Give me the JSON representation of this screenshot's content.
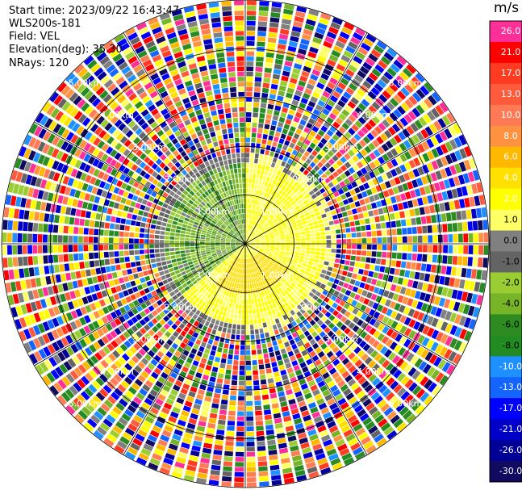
{
  "header": {
    "start_time": "Start time: 2023/09/22 16:43:47",
    "instrument": "WLS200s-181",
    "field": "Field: VEL",
    "elevation": "Elevation(deg): 35.30",
    "nrays": "NRays: 120"
  },
  "chart_data": {
    "type": "heatmap",
    "projection": "polar-ppi",
    "field": "VEL",
    "units": "m/s",
    "nrays": 120,
    "range_rings_km": [
      1.0,
      2.0,
      3.0,
      4.0,
      5.0
    ],
    "ring_labels": [
      "1.00km",
      "2.00km",
      "3.00km",
      "4.00km",
      "5.00km"
    ],
    "max_range_km": 5.0,
    "azimuth_spokes_deg": [
      0,
      30,
      60,
      90,
      120,
      150,
      180,
      210,
      240,
      270,
      300,
      330
    ],
    "grid": true,
    "colorbar": {
      "title": "m/s",
      "ticks": [
        "26.0",
        "21.0",
        "17.0",
        "13.0",
        "10.0",
        "8.0",
        "6.0",
        "4.0",
        "2.0",
        "1.0",
        "0.0",
        "-1.0",
        "-2.0",
        "-4.0",
        "-6.0",
        "-8.0",
        "-10.0",
        "-13.0",
        "-17.0",
        "-21.0",
        "-26.0",
        "-30.0"
      ],
      "colors": [
        "#ff2f9a",
        "#ff0000",
        "#ff3b22",
        "#ff5a3c",
        "#ff7a55",
        "#ff9240",
        "#ffb800",
        "#ffe000",
        "#ffff00",
        "#ffff66",
        "#808080",
        "#646464",
        "#9acd32",
        "#78b428",
        "#2e8b22",
        "#228b22",
        "#1e90ff",
        "#1464ff",
        "#0000ff",
        "#0000c8",
        "#000096",
        "#100a60"
      ]
    },
    "inner_region_km": 1.9,
    "inner_pattern": {
      "east_half_min_km": 0.3,
      "yellow_values_ms": [
        1.5,
        2.5,
        3.0
      ],
      "orange_values_ms": [
        4.0,
        5.0
      ],
      "green_values_ms": [
        -2.0,
        -3.0,
        -4.0,
        -6.0
      ],
      "gray_values_ms": [
        0.0,
        -0.5
      ]
    }
  }
}
